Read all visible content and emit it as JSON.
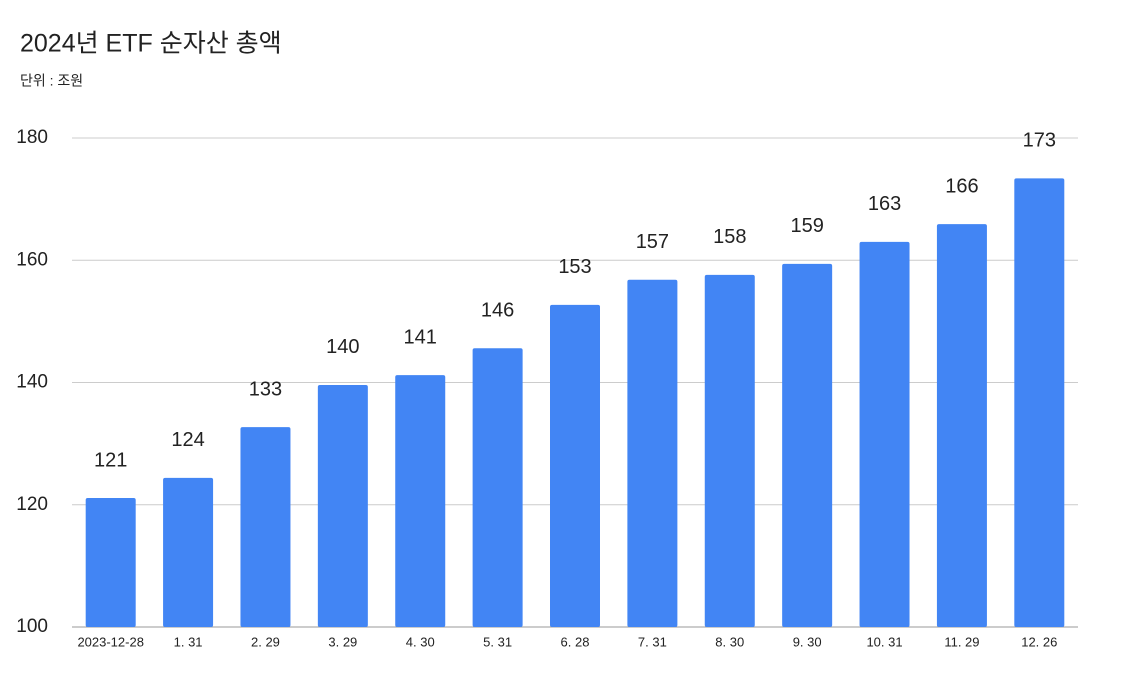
{
  "chart_data": {
    "type": "bar",
    "title": "2024년 ETF 순자산 총액",
    "subtitle": "단위 : 조원",
    "categories": [
      "2023-12-28",
      "1. 31",
      "2. 29",
      "3. 29",
      "4. 30",
      "5. 31",
      "6. 28",
      "7. 31",
      "8. 30",
      "9. 30",
      "10. 31",
      "11. 29",
      "12. 26"
    ],
    "values": [
      121.1,
      124.4,
      132.7,
      139.6,
      141.2,
      145.6,
      152.7,
      156.8,
      157.6,
      159.4,
      163.0,
      165.9,
      173.4
    ],
    "value_labels": [
      "121",
      "124",
      "133",
      "140",
      "141",
      "146",
      "153",
      "157",
      "158",
      "159",
      "163",
      "166",
      "173"
    ],
    "color": "#4285f4",
    "label_color": "#4a86e0",
    "ylim": [
      100,
      180
    ],
    "yticks": [
      100,
      120,
      140,
      160,
      180
    ],
    "grid": true
  }
}
